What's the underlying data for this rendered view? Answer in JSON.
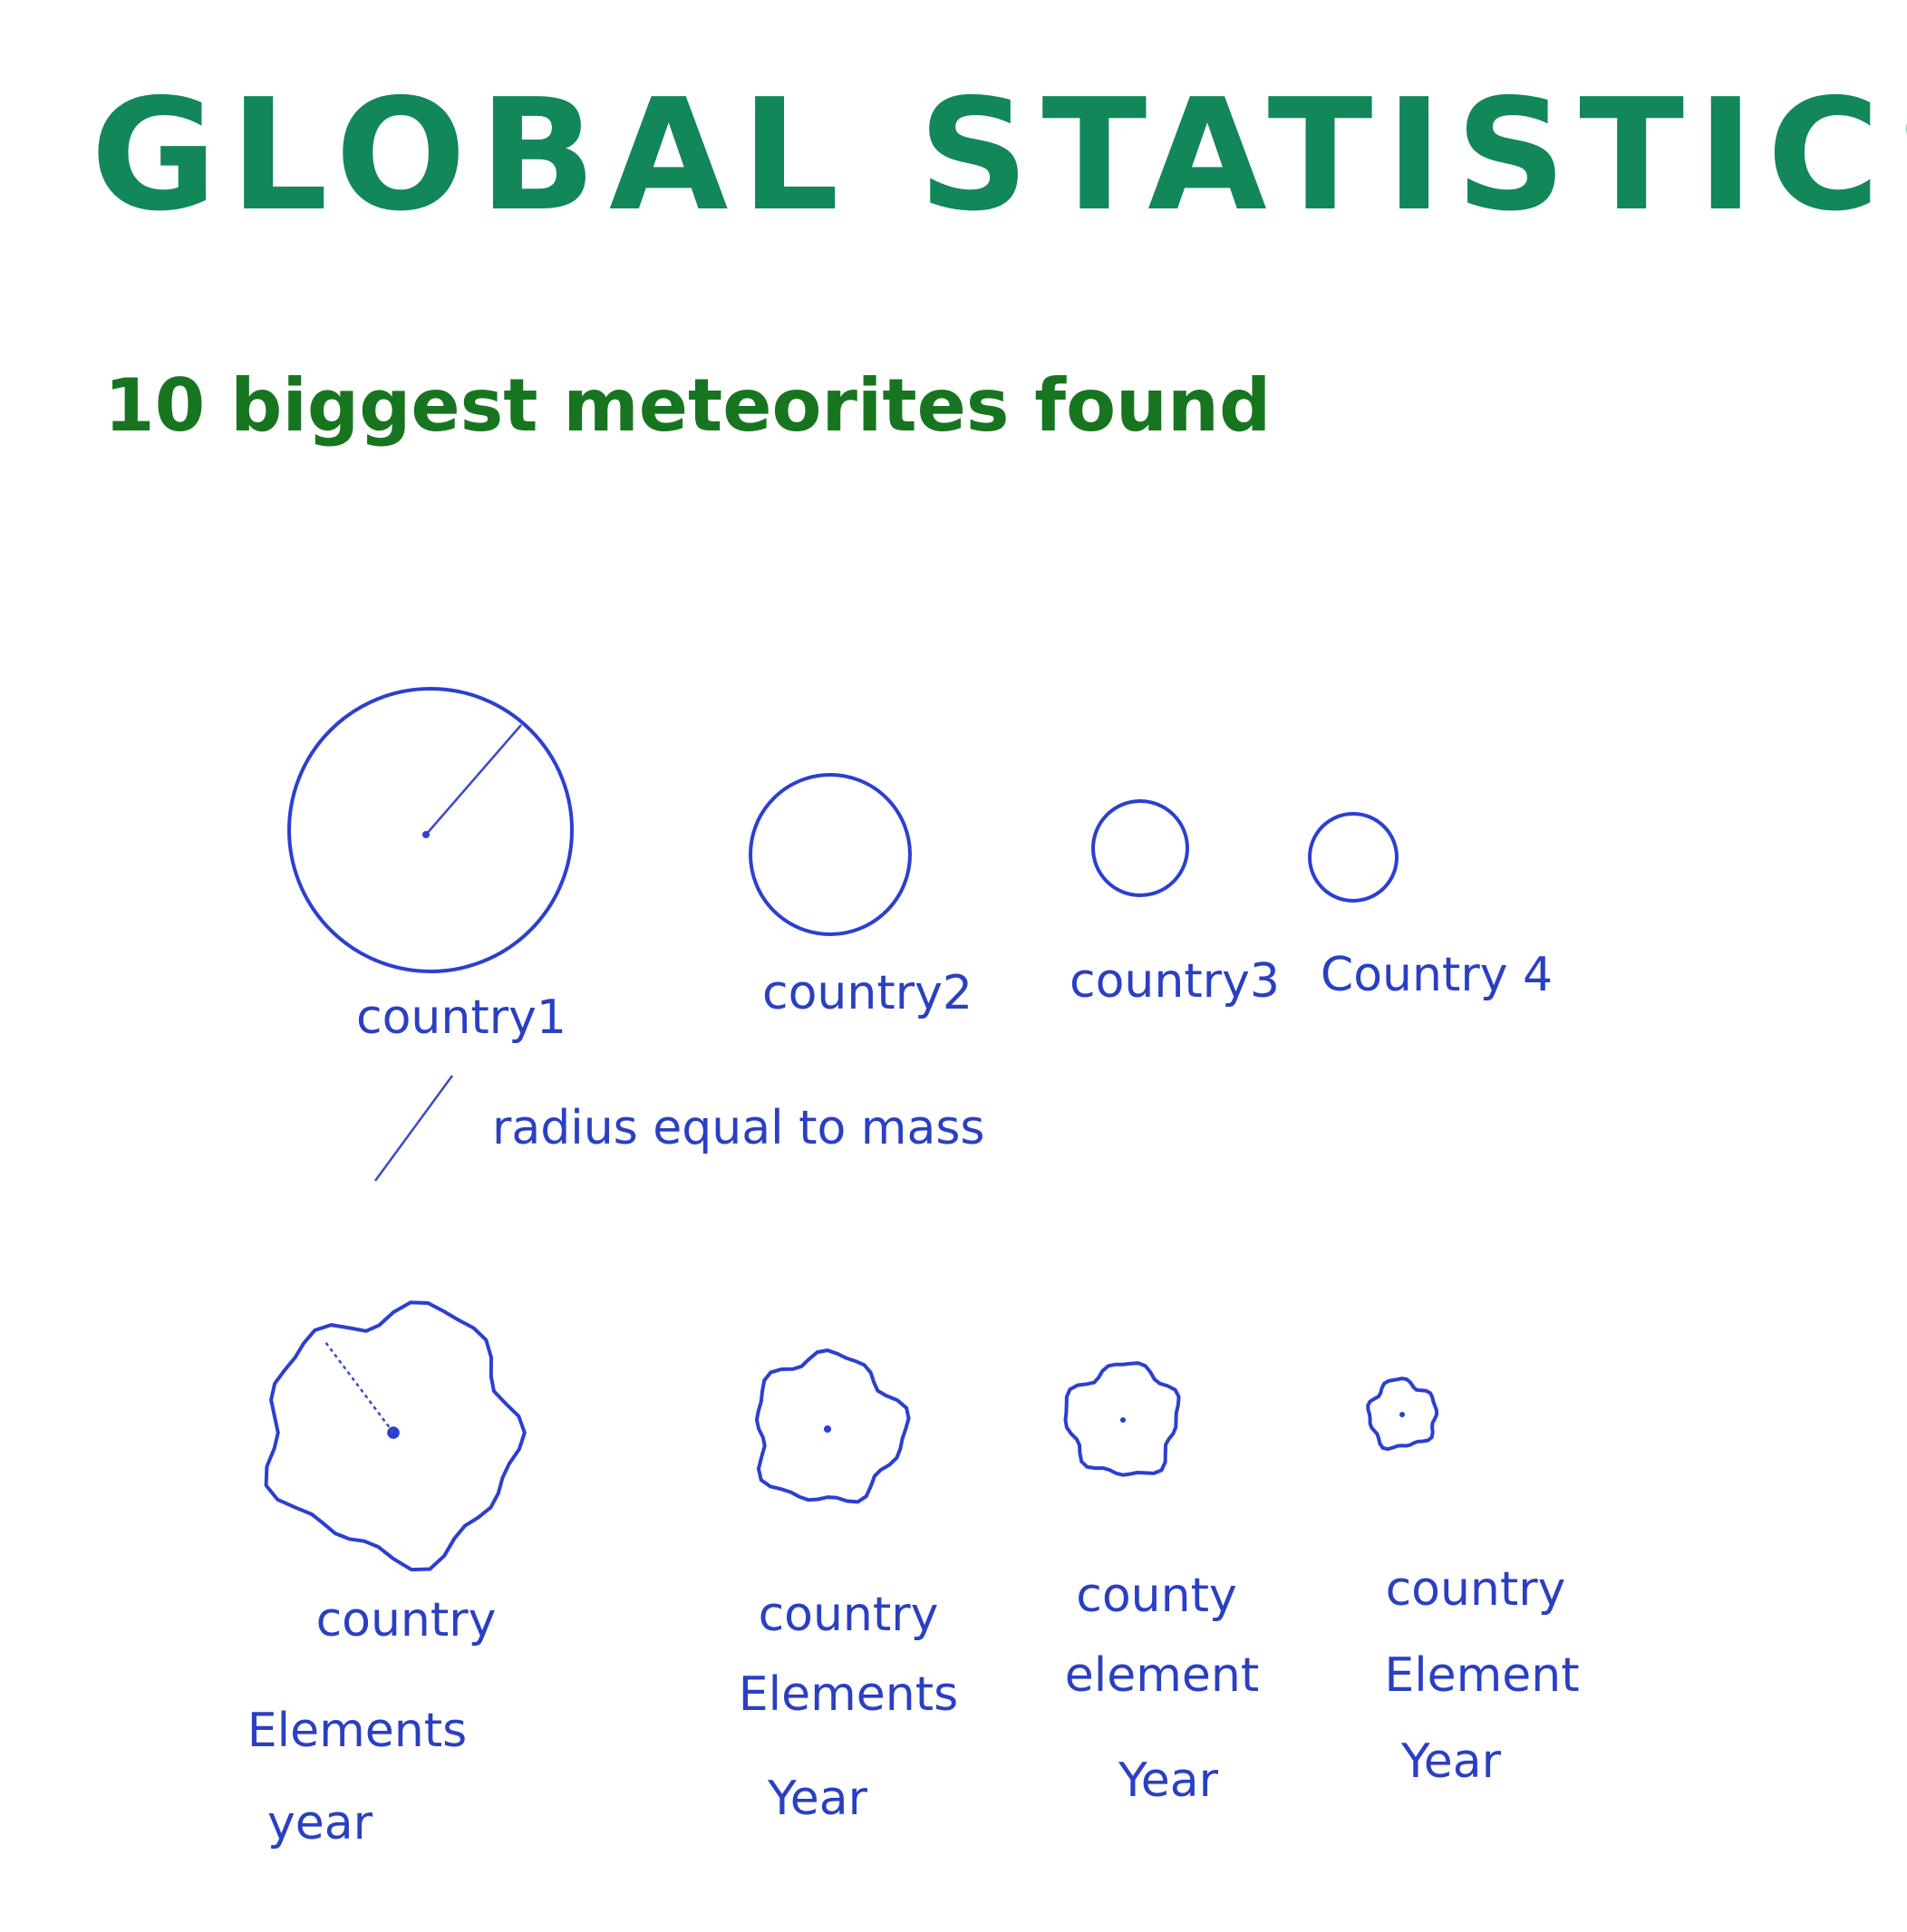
{
  "header": {
    "title": "GLOBAL STATISTICS",
    "subtitle": "10 biggest meteorites found"
  },
  "row1": {
    "labels": [
      "country1",
      "country2",
      "country3",
      "Country 4"
    ],
    "note": "radius equal to mass"
  },
  "row2": {
    "items": [
      [
        "country",
        "Elements",
        "year"
      ],
      [
        "country",
        "Elements",
        "Year"
      ],
      [
        "county",
        "element",
        "Year"
      ],
      [
        "country",
        "Element",
        "Year"
      ]
    ]
  }
}
